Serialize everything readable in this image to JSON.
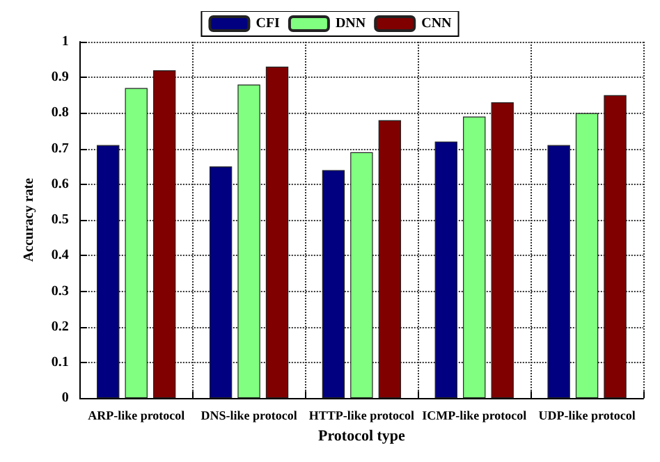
{
  "chart_data": {
    "type": "bar",
    "xlabel": "Protocol type",
    "ylabel": "Accuracy rate",
    "categories": [
      "ARP-like protocol",
      "DNS-like protocol",
      "HTTP-like protocol",
      "ICMP-like protocol",
      "UDP-like protocol"
    ],
    "series": [
      {
        "name": "CFI",
        "color": "#000080",
        "values": [
          0.71,
          0.65,
          0.64,
          0.72,
          0.71
        ]
      },
      {
        "name": "DNN",
        "color": "#80ff80",
        "values": [
          0.87,
          0.88,
          0.69,
          0.79,
          0.8
        ]
      },
      {
        "name": "CNN",
        "color": "#800000",
        "values": [
          0.92,
          0.93,
          0.78,
          0.83,
          0.85
        ]
      }
    ],
    "ylim": [
      0,
      1
    ],
    "yticks": [
      0,
      0.1,
      0.2,
      0.3,
      0.4,
      0.5,
      0.6,
      0.7,
      0.8,
      0.9,
      1
    ],
    "grid": true,
    "legend": "top"
  }
}
